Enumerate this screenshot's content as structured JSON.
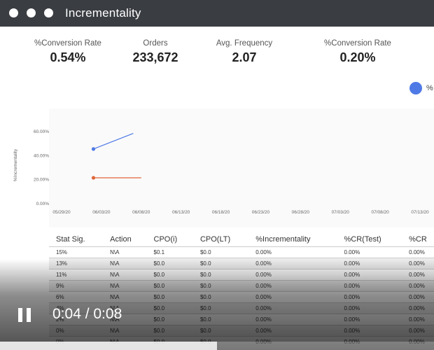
{
  "window": {
    "title": "Incrementality"
  },
  "kpis": [
    {
      "label": "%Conversion Rate",
      "value": "0.54%"
    },
    {
      "label": "Orders",
      "value": "233,672"
    },
    {
      "label": "Avg. Frequency",
      "value": "2.07"
    },
    {
      "label": "%Conversion Rate",
      "value": "0.20%"
    }
  ],
  "legend": {
    "label": "%",
    "color": "#4f7ae6"
  },
  "chart_data": {
    "type": "line",
    "ylabel": "%Incrementality",
    "yticks": [
      "0.00%",
      "20.00%",
      "40.00%",
      "60.00%"
    ],
    "ylim": [
      0,
      70
    ],
    "xticks": [
      "05/29/20",
      "06/03/20",
      "06/08/20",
      "06/13/20",
      "06/18/20",
      "06/23/20",
      "06/28/20",
      "07/03/20",
      "07/08/20",
      "07/13/20"
    ],
    "series": [
      {
        "color": "#4f7ae6",
        "points": [
          {
            "x": "06/02/20",
            "y": 45
          },
          {
            "x": "06/07/20",
            "y": 58
          }
        ]
      },
      {
        "color": "#e0663a",
        "points": [
          {
            "x": "06/02/20",
            "y": 21
          },
          {
            "x": "06/08/20",
            "y": 21
          }
        ]
      }
    ]
  },
  "table": {
    "columns": [
      "Stat Sig.",
      "Action",
      "CPO(i)",
      "CPO(LT)",
      "%Incrementality",
      "%CR(Test)",
      "%CR"
    ],
    "rows": [
      [
        "15%",
        "N\\A",
        "$0.1",
        "$0.0",
        "0.00%",
        "0.00%",
        "0.00%"
      ],
      [
        "13%",
        "N\\A",
        "$0.0",
        "$0.0",
        "0.00%",
        "0.00%",
        "0.00%"
      ],
      [
        "11%",
        "N\\A",
        "$0.0",
        "$0.0",
        "0.00%",
        "0.00%",
        "0.00%"
      ],
      [
        "9%",
        "N\\A",
        "$0.0",
        "$0.0",
        "0.00%",
        "0.00%",
        "0.00%"
      ],
      [
        "6%",
        "N\\A",
        "$0.0",
        "$0.0",
        "0.00%",
        "0.00%",
        "0.00%"
      ],
      [
        "4%",
        "N\\A",
        "$0.0",
        "$0.0",
        "0.00%",
        "0.00%",
        "0.00%"
      ],
      [
        "2%",
        "N\\A",
        "$0.0",
        "$0.0",
        "0.00%",
        "0.00%",
        "0.00%"
      ],
      [
        "0%",
        "N\\A",
        "$0.0",
        "$0.0",
        "0.00%",
        "0.00%",
        "0.00%"
      ],
      [
        "0%",
        "N\\A",
        "$0.0",
        "$0.0",
        "0.00%",
        "0.00%",
        "0.00%"
      ]
    ]
  },
  "player": {
    "time": "0:04 / 0:08",
    "progress": 0.5,
    "state_icon": "pause-icon"
  }
}
